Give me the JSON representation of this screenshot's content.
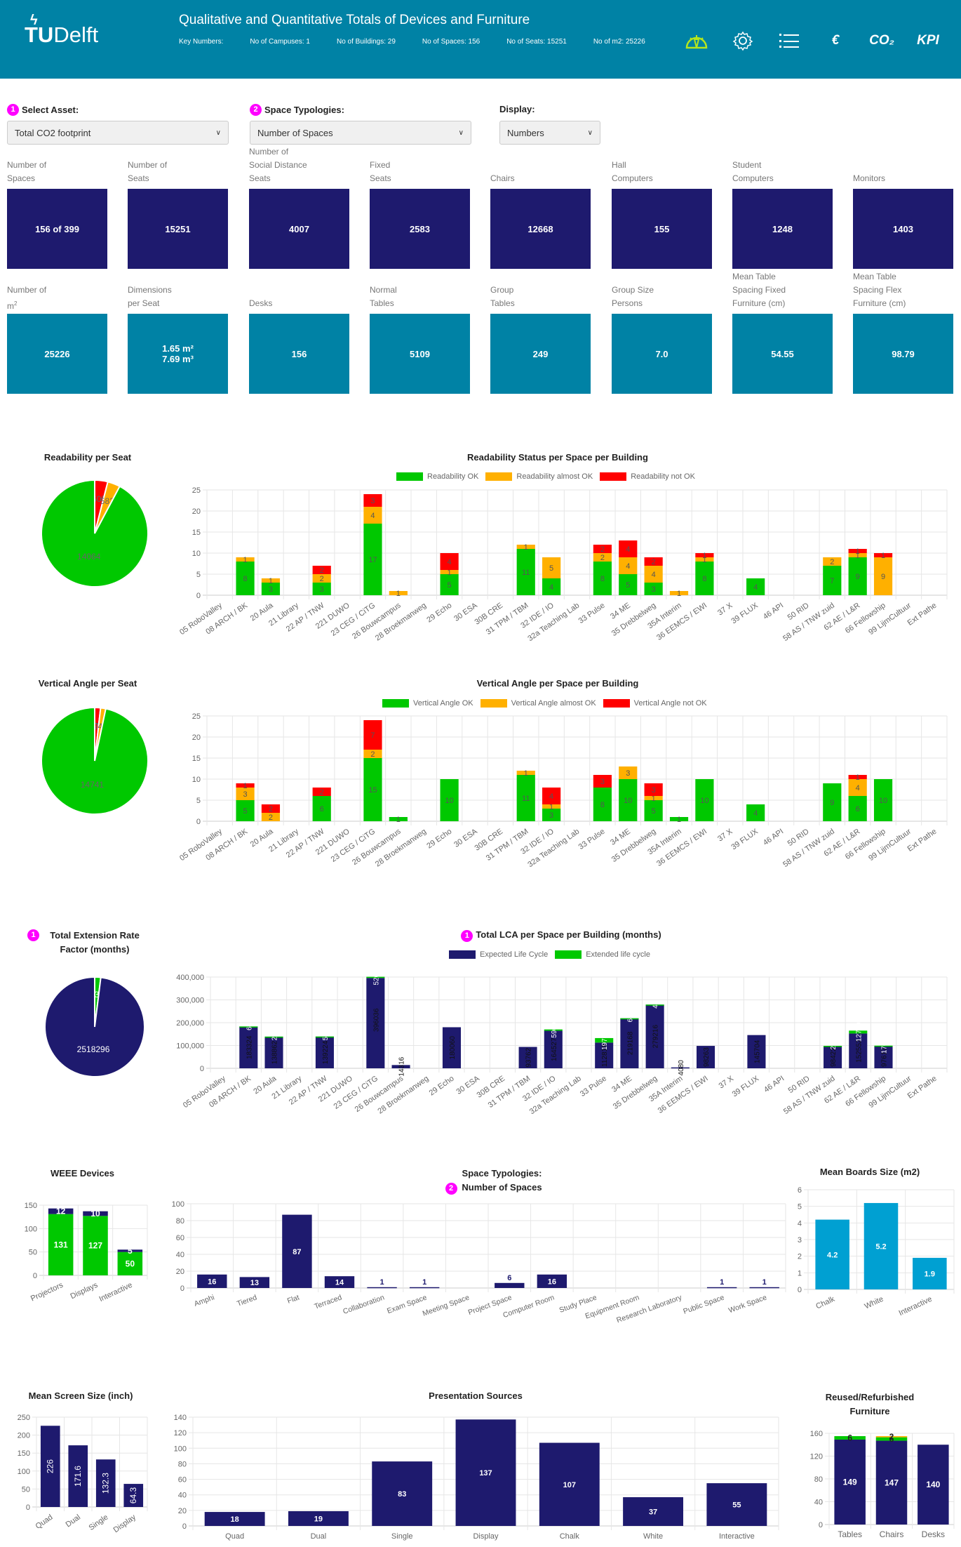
{
  "header": {
    "logo_text_bold": "TU",
    "logo_text": "Delft",
    "title": "Qualitative and Quantitative Totals of Devices and Furniture",
    "key_numbers": [
      "Key Numbers:",
      "No of Campuses: 1",
      "No of Buildings: 29",
      "No of Spaces: 156",
      "No of Seats: 15251",
      "No of m2: 25226"
    ],
    "nav": [
      {
        "name": "dashboard-gauge-icon",
        "label": ""
      },
      {
        "name": "settings-gear-icon",
        "label": ""
      },
      {
        "name": "list-icon",
        "label": ""
      },
      {
        "name": "euro-icon",
        "label": "€"
      },
      {
        "name": "co2-icon",
        "label": "CO₂"
      },
      {
        "name": "kpi-icon",
        "label": "KPI"
      }
    ],
    "active_icon_color": "#b5e61d"
  },
  "filters": {
    "asset": {
      "badge": "1",
      "label": "Select Asset:",
      "value": "Total CO2 footprint"
    },
    "typology": {
      "badge": "2",
      "label": "Space Typologies:",
      "value": "Number of Spaces"
    },
    "display": {
      "label": "Display:",
      "value": "Numbers"
    }
  },
  "tiles_row1": [
    {
      "label": [
        "Number of",
        "Spaces"
      ],
      "value": "156 of 399"
    },
    {
      "label": [
        "Number of",
        "Seats"
      ],
      "value": "15251"
    },
    {
      "label": [
        "Number of",
        "Social Distance",
        "Seats"
      ],
      "value": "4007"
    },
    {
      "label": [
        "Fixed",
        "Seats"
      ],
      "value": "2583"
    },
    {
      "label": [
        "Chairs"
      ],
      "value": "12668"
    },
    {
      "label": [
        "Hall",
        "Computers"
      ],
      "value": "155"
    },
    {
      "label": [
        "Student",
        "Computers"
      ],
      "value": "1248"
    },
    {
      "label": [
        "Monitors"
      ],
      "value": "1403"
    }
  ],
  "tiles_row2": [
    {
      "label": [
        "Number of",
        "m²"
      ],
      "value": "25226"
    },
    {
      "label": [
        "Dimensions",
        "per Seat"
      ],
      "value": "1.65 m²",
      "value2": "7.69 m³"
    },
    {
      "label": [
        "Desks"
      ],
      "value": "156"
    },
    {
      "label": [
        "Normal",
        "Tables"
      ],
      "value": "5109"
    },
    {
      "label": [
        "Group",
        "Tables"
      ],
      "value": "249"
    },
    {
      "label": [
        "Group Size",
        "Persons"
      ],
      "value": "7.0"
    },
    {
      "label": [
        "Mean Table",
        "Spacing Fixed",
        "Furniture (cm)"
      ],
      "value": "54.55"
    },
    {
      "label": [
        "Mean Table",
        "Spacing Flex",
        "Furniture (cm)"
      ],
      "value": "98.79"
    }
  ],
  "colors": {
    "green": "#00c800",
    "orange": "#ffb000",
    "red": "#ff0000",
    "navy": "#1e1a6e",
    "teal": "#0082a5",
    "lightblue": "#00a0d2"
  },
  "chart_data": [
    {
      "id": "readability-pie",
      "type": "pie",
      "title": "Readability per Seat",
      "slices": [
        {
          "name": "Readability OK",
          "value": 14064,
          "color": "#00c800"
        },
        {
          "name": "Readability almost OK",
          "value": 582,
          "color": "#ffb000"
        },
        {
          "name": "Readability not OK",
          "value": 605,
          "color": "#ff0000"
        }
      ]
    },
    {
      "id": "readability-bar",
      "type": "bar",
      "stacked": true,
      "title": "Readability Status per Space per Building",
      "categories": [
        "05 RoboValley",
        "08 ARCH / BK",
        "20 Aula",
        "21 Library",
        "22 AP / TNW",
        "221 DUWO",
        "23 CEG / CiTG",
        "26 Bouwcampus",
        "28 Broekmanweg",
        "29 Echo",
        "30 ESA",
        "30B CRE",
        "31 TPM / TBM",
        "32 IDE / IO",
        "32a Teaching Lab",
        "33 Pulse",
        "34 ME",
        "35 Drebbelweg",
        "35A Interim",
        "36 EEMCS / EWI",
        "37 X",
        "39 FLUX",
        "46 API",
        "50 RID",
        "58 AS / TNW zuid",
        "62 AE / L&R",
        "66 Fellowship",
        "99 LijmCultuur",
        "Ext Pathe"
      ],
      "series": [
        {
          "name": "Readability OK",
          "color": "#00c800",
          "values": [
            0,
            8,
            3,
            0,
            3,
            0,
            17,
            0,
            0,
            5,
            0,
            0,
            11,
            4,
            0,
            8,
            5,
            3,
            0,
            8,
            0,
            4,
            0,
            0,
            7,
            9,
            0,
            0,
            0
          ]
        },
        {
          "name": "Readability almost OK",
          "color": "#ffb000",
          "values": [
            0,
            1,
            1,
            0,
            2,
            0,
            4,
            1,
            0,
            1,
            0,
            0,
            1,
            5,
            0,
            2,
            4,
            4,
            1,
            1,
            0,
            0,
            0,
            0,
            2,
            1,
            9,
            0,
            0
          ]
        },
        {
          "name": "Readability not OK",
          "color": "#ff0000",
          "values": [
            0,
            0,
            0,
            0,
            2,
            0,
            3,
            0,
            0,
            4,
            0,
            0,
            0,
            0,
            0,
            2,
            4,
            2,
            0,
            1,
            0,
            0,
            0,
            0,
            0,
            1,
            1,
            0,
            0
          ]
        }
      ],
      "ylim": [
        0,
        25
      ],
      "yticks": [
        0,
        5,
        10,
        15,
        20,
        25
      ],
      "legend": "top"
    },
    {
      "id": "vertical-pie",
      "type": "pie",
      "title": "Vertical Angle per Seat",
      "slices": [
        {
          "name": "Vertical Angle OK",
          "value": 14741,
          "color": "#00c800"
        },
        {
          "name": "Vertical Angle almost OK",
          "value": 240,
          "color": "#ffb000"
        },
        {
          "name": "Vertical Angle not OK",
          "value": 270,
          "color": "#ff0000"
        }
      ]
    },
    {
      "id": "vertical-bar",
      "type": "bar",
      "stacked": true,
      "title": "Vertical Angle per Space per Building",
      "categories": [
        "05 RoboValley",
        "08 ARCH / BK",
        "20 Aula",
        "21 Library",
        "22 AP / TNW",
        "221 DUWO",
        "23 CEG / CiTG",
        "26 Bouwcampus",
        "28 Broekmanweg",
        "29 Echo",
        "30 ESA",
        "30B CRE",
        "31 TPM / TBM",
        "32 IDE / IO",
        "32a Teaching Lab",
        "33 Pulse",
        "34 ME",
        "35 Drebbelweg",
        "35A Interim",
        "36 EEMCS / EWI",
        "37 X",
        "39 FLUX",
        "46 API",
        "50 RID",
        "58 AS / TNW zuid",
        "62 AE / L&R",
        "66 Fellowship",
        "99 LijmCultuur",
        "Ext Pathe"
      ],
      "series": [
        {
          "name": "Vertical Angle OK",
          "color": "#00c800",
          "values": [
            0,
            5,
            0,
            0,
            6,
            0,
            15,
            1,
            0,
            10,
            0,
            0,
            11,
            3,
            0,
            8,
            10,
            5,
            1,
            10,
            0,
            4,
            0,
            0,
            9,
            6,
            10,
            0,
            0
          ]
        },
        {
          "name": "Vertical Angle almost OK",
          "color": "#ffb000",
          "values": [
            0,
            3,
            2,
            0,
            0,
            0,
            2,
            0,
            0,
            0,
            0,
            0,
            1,
            1,
            0,
            0,
            3,
            1,
            0,
            0,
            0,
            0,
            0,
            0,
            0,
            4,
            0,
            0,
            0
          ]
        },
        {
          "name": "Vertical Angle not OK",
          "color": "#ff0000",
          "values": [
            0,
            1,
            2,
            0,
            2,
            0,
            7,
            0,
            0,
            0,
            0,
            0,
            0,
            4,
            0,
            3,
            0,
            3,
            0,
            0,
            0,
            0,
            0,
            0,
            0,
            1,
            0,
            0,
            0
          ]
        }
      ],
      "ylim": [
        0,
        25
      ],
      "yticks": [
        0,
        5,
        10,
        15,
        20,
        25
      ],
      "legend": "top"
    },
    {
      "id": "extension-pie",
      "type": "pie",
      "badge": "1",
      "title": "Total Extension Rate Factor (months)",
      "slices": [
        {
          "name": "Expected Life Cycle",
          "value": 2518296,
          "color": "#1e1a6e"
        },
        {
          "name": "Extended life cycle",
          "value": 50359,
          "color": "#00c800"
        }
      ]
    },
    {
      "id": "lca-bar",
      "type": "bar",
      "stacked": true,
      "badge": "1",
      "title": "Total LCA per Space per Building (months)",
      "categories": [
        "05 RoboValley",
        "08 ARCH / BK",
        "20 Aula",
        "21 Library",
        "22 AP / TNW",
        "221 DUWO",
        "23 CEG / CiTG",
        "26 Bouwcampus",
        "28 Broekmanweg",
        "29 Echo",
        "30 ESA",
        "30B CRE",
        "31 TPM / TBM",
        "32 IDE / IO",
        "32a Teaching Lab",
        "33 Pulse",
        "34 ME",
        "35 Drebbelweg",
        "35A Interim",
        "36 EEMCS / EWI",
        "37 X",
        "39 FLUX",
        "46 API",
        "50 RID",
        "58 AS / TNW zuid",
        "62 AE / L&R",
        "66 Fellowship",
        "99 LijmCultuur",
        "Ext Pathe"
      ],
      "series": [
        {
          "name": "Expected Life Cycle",
          "color": "#1e1a6e",
          "values": [
            0,
            183324,
            138862,
            0,
            139224,
            0,
            396036,
            14316,
            0,
            180060,
            0,
            0,
            93762,
            164527,
            0,
            112819,
            219168,
            279216,
            4080,
            98263,
            0,
            145704,
            0,
            0,
            98422,
            152552,
            97617,
            0,
            0
          ]
        },
        {
          "name": "Extended life cycle",
          "color": "#00c800",
          "values": [
            0,
            62,
            28,
            0,
            54,
            0,
            5200,
            0,
            0,
            0,
            0,
            0,
            0,
            5900,
            0,
            19700,
            60,
            45,
            0,
            0,
            0,
            0,
            0,
            0,
            27,
            12700,
            1700,
            0,
            0
          ]
        }
      ],
      "ylim": [
        0,
        400000
      ],
      "yticks": [
        "0",
        "100,000",
        "200,000",
        "300,000",
        "400,000"
      ],
      "legend": "top"
    },
    {
      "id": "weee-bar",
      "type": "bar",
      "stacked": true,
      "title": "WEEE Devices",
      "categories": [
        "Projectors",
        "Displays",
        "Interactive"
      ],
      "series": [
        {
          "name": "OK",
          "color": "#00c800",
          "values": [
            131,
            127,
            50
          ]
        },
        {
          "name": "WEEE",
          "color": "#1e1a6e",
          "values": [
            12,
            10,
            5
          ]
        }
      ],
      "ylim": [
        0,
        150
      ],
      "yticks": [
        0,
        50,
        100,
        150
      ]
    },
    {
      "id": "typology-bar",
      "type": "bar",
      "badge": "2",
      "title": "Space Typologies: Number of Spaces",
      "categories": [
        "Amphi",
        "Tiered",
        "Flat",
        "Terraced",
        "Collaboration",
        "Exam Space",
        "Meeting Space",
        "Project Space",
        "Computer Room",
        "Study Place",
        "Equipment Room",
        "Research Laboratory",
        "Public Space",
        "Work Space"
      ],
      "values": [
        16,
        13,
        87,
        14,
        1,
        1,
        0,
        6,
        16,
        0,
        0,
        0,
        1,
        1
      ],
      "ylim": [
        0,
        100
      ],
      "yticks": [
        0,
        20,
        40,
        60,
        80,
        100
      ]
    },
    {
      "id": "boards-bar",
      "type": "bar",
      "title": "Mean Boards Size (m2)",
      "categories": [
        "Chalk",
        "White",
        "Interactive"
      ],
      "values": [
        4.2,
        5.2,
        1.9
      ],
      "ylim": [
        0,
        6
      ],
      "yticks": [
        0,
        1,
        2,
        3,
        4,
        5,
        6
      ]
    },
    {
      "id": "screen-bar",
      "type": "bar",
      "title": "Mean Screen Size (inch)",
      "categories": [
        "Quad",
        "Dual",
        "Single",
        "Display"
      ],
      "values": [
        226,
        171.6,
        132.3,
        64.3
      ],
      "ylim": [
        0,
        250
      ],
      "yticks": [
        0,
        50,
        100,
        150,
        200,
        250
      ]
    },
    {
      "id": "presentation-bar",
      "type": "bar",
      "title": "Presentation Sources",
      "categories": [
        "Quad",
        "Dual",
        "Single",
        "Display",
        "Chalk",
        "White",
        "Interactive"
      ],
      "values": [
        18,
        19,
        83,
        137,
        107,
        37,
        55
      ],
      "ylim": [
        0,
        140
      ],
      "yticks": [
        0,
        20,
        40,
        60,
        80,
        100,
        120,
        140
      ]
    },
    {
      "id": "furniture-bar",
      "type": "bar",
      "stacked": true,
      "title": "Reused/Refurbished Furniture",
      "categories": [
        "Tables",
        "Chairs",
        "Desks"
      ],
      "series": [
        {
          "name": "New",
          "color": "#1e1a6e",
          "values": [
            149,
            147,
            140
          ]
        },
        {
          "name": "Reused",
          "color": "#00c800",
          "values": [
            6,
            6,
            0
          ]
        },
        {
          "name": "Refurbished",
          "color": "#ffb000",
          "values": [
            0,
            2,
            0
          ]
        }
      ],
      "ylim": [
        0,
        160
      ],
      "yticks": [
        0,
        40,
        80,
        120,
        160
      ]
    }
  ]
}
